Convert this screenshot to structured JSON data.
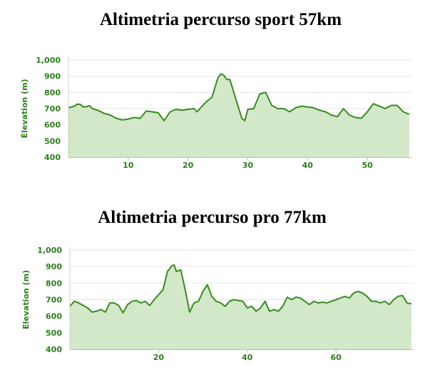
{
  "chart_data": [
    {
      "type": "area",
      "title": "Altimetria percurso sport 57km",
      "xlabel": "",
      "ylabel": "Elevation (m)",
      "xlim": [
        0,
        57.5
      ],
      "ylim": [
        400,
        1000
      ],
      "x_ticks": [
        10,
        20,
        30,
        40,
        50
      ],
      "y_ticks": [
        400,
        500,
        600,
        700,
        800,
        900,
        1000
      ],
      "y_tick_labels": [
        "400",
        "500",
        "600",
        "700",
        "800",
        "900",
        "1,000"
      ],
      "grid": true,
      "colors": {
        "line": "#3a8a1f",
        "fill": "#d2e8c8",
        "text": "#2e7d1e",
        "grid": "#e6e6e6"
      },
      "series": [
        {
          "x": [
            0,
            1,
            1.5,
            2,
            2.5,
            3,
            3.5,
            4,
            5,
            6,
            7,
            8,
            9,
            10,
            11,
            12,
            13,
            14,
            15,
            16,
            17,
            18,
            19,
            20,
            21,
            21.5,
            22,
            23,
            24,
            25,
            25.5,
            26,
            26.5,
            27,
            28,
            28.5,
            29,
            29.5,
            30,
            31,
            32,
            33,
            34,
            35,
            36,
            37,
            38,
            39,
            40,
            41,
            42,
            43,
            44,
            45,
            46,
            47,
            48,
            49,
            50,
            51,
            52,
            53,
            54,
            55,
            56,
            57
          ],
          "y": [
            705,
            715,
            728,
            725,
            710,
            712,
            718,
            700,
            688,
            670,
            660,
            640,
            630,
            635,
            645,
            640,
            685,
            680,
            675,
            625,
            680,
            695,
            690,
            695,
            700,
            680,
            700,
            740,
            770,
            890,
            915,
            905,
            880,
            880,
            760,
            700,
            640,
            625,
            695,
            700,
            790,
            800,
            720,
            700,
            700,
            680,
            705,
            715,
            710,
            705,
            690,
            680,
            660,
            650,
            700,
            660,
            645,
            640,
            680,
            730,
            715,
            700,
            720,
            720,
            680,
            665
          ]
        }
      ]
    },
    {
      "type": "area",
      "title": "Altimetria percurso pro 77km",
      "xlabel": "",
      "ylabel": "Elevation (m)",
      "xlim": [
        0,
        77.5
      ],
      "ylim": [
        400,
        1000
      ],
      "x_ticks": [
        20,
        40,
        60
      ],
      "y_ticks": [
        400,
        500,
        600,
        700,
        800,
        900,
        1000
      ],
      "y_tick_labels": [
        "400",
        "500",
        "600",
        "700",
        "800",
        "900",
        "1,000"
      ],
      "grid": true,
      "colors": {
        "line": "#3a8a1f",
        "fill": "#d2e8c8",
        "text": "#2e7d1e",
        "grid": "#e6e6e6"
      },
      "series": [
        {
          "x": [
            0,
            1,
            2,
            3,
            4,
            5,
            6,
            7,
            8,
            9,
            10,
            11,
            12,
            13,
            14,
            15,
            16,
            17,
            18,
            19,
            20,
            21,
            22,
            23,
            23.5,
            24,
            25,
            26,
            27,
            28,
            29,
            30,
            31,
            32,
            33,
            34,
            35,
            36,
            37,
            38,
            39,
            40,
            41,
            42,
            43,
            44,
            45,
            46,
            47,
            48,
            49,
            50,
            51,
            52,
            53,
            54,
            55,
            56,
            57,
            58,
            59,
            60,
            61,
            62,
            63,
            64,
            65,
            66,
            67,
            68,
            69,
            70,
            71,
            72,
            73,
            74,
            75,
            76,
            77
          ],
          "y": [
            660,
            690,
            680,
            665,
            650,
            625,
            630,
            640,
            625,
            680,
            680,
            665,
            620,
            670,
            690,
            695,
            680,
            690,
            665,
            700,
            730,
            760,
            870,
            905,
            910,
            870,
            880,
            760,
            625,
            680,
            690,
            750,
            790,
            720,
            690,
            680,
            660,
            690,
            700,
            695,
            690,
            650,
            660,
            630,
            650,
            690,
            630,
            640,
            630,
            660,
            715,
            700,
            715,
            710,
            690,
            670,
            690,
            680,
            685,
            680,
            690,
            700,
            710,
            720,
            710,
            740,
            750,
            740,
            720,
            690,
            690,
            680,
            690,
            670,
            700,
            720,
            725,
            680,
            675
          ]
        }
      ]
    }
  ]
}
